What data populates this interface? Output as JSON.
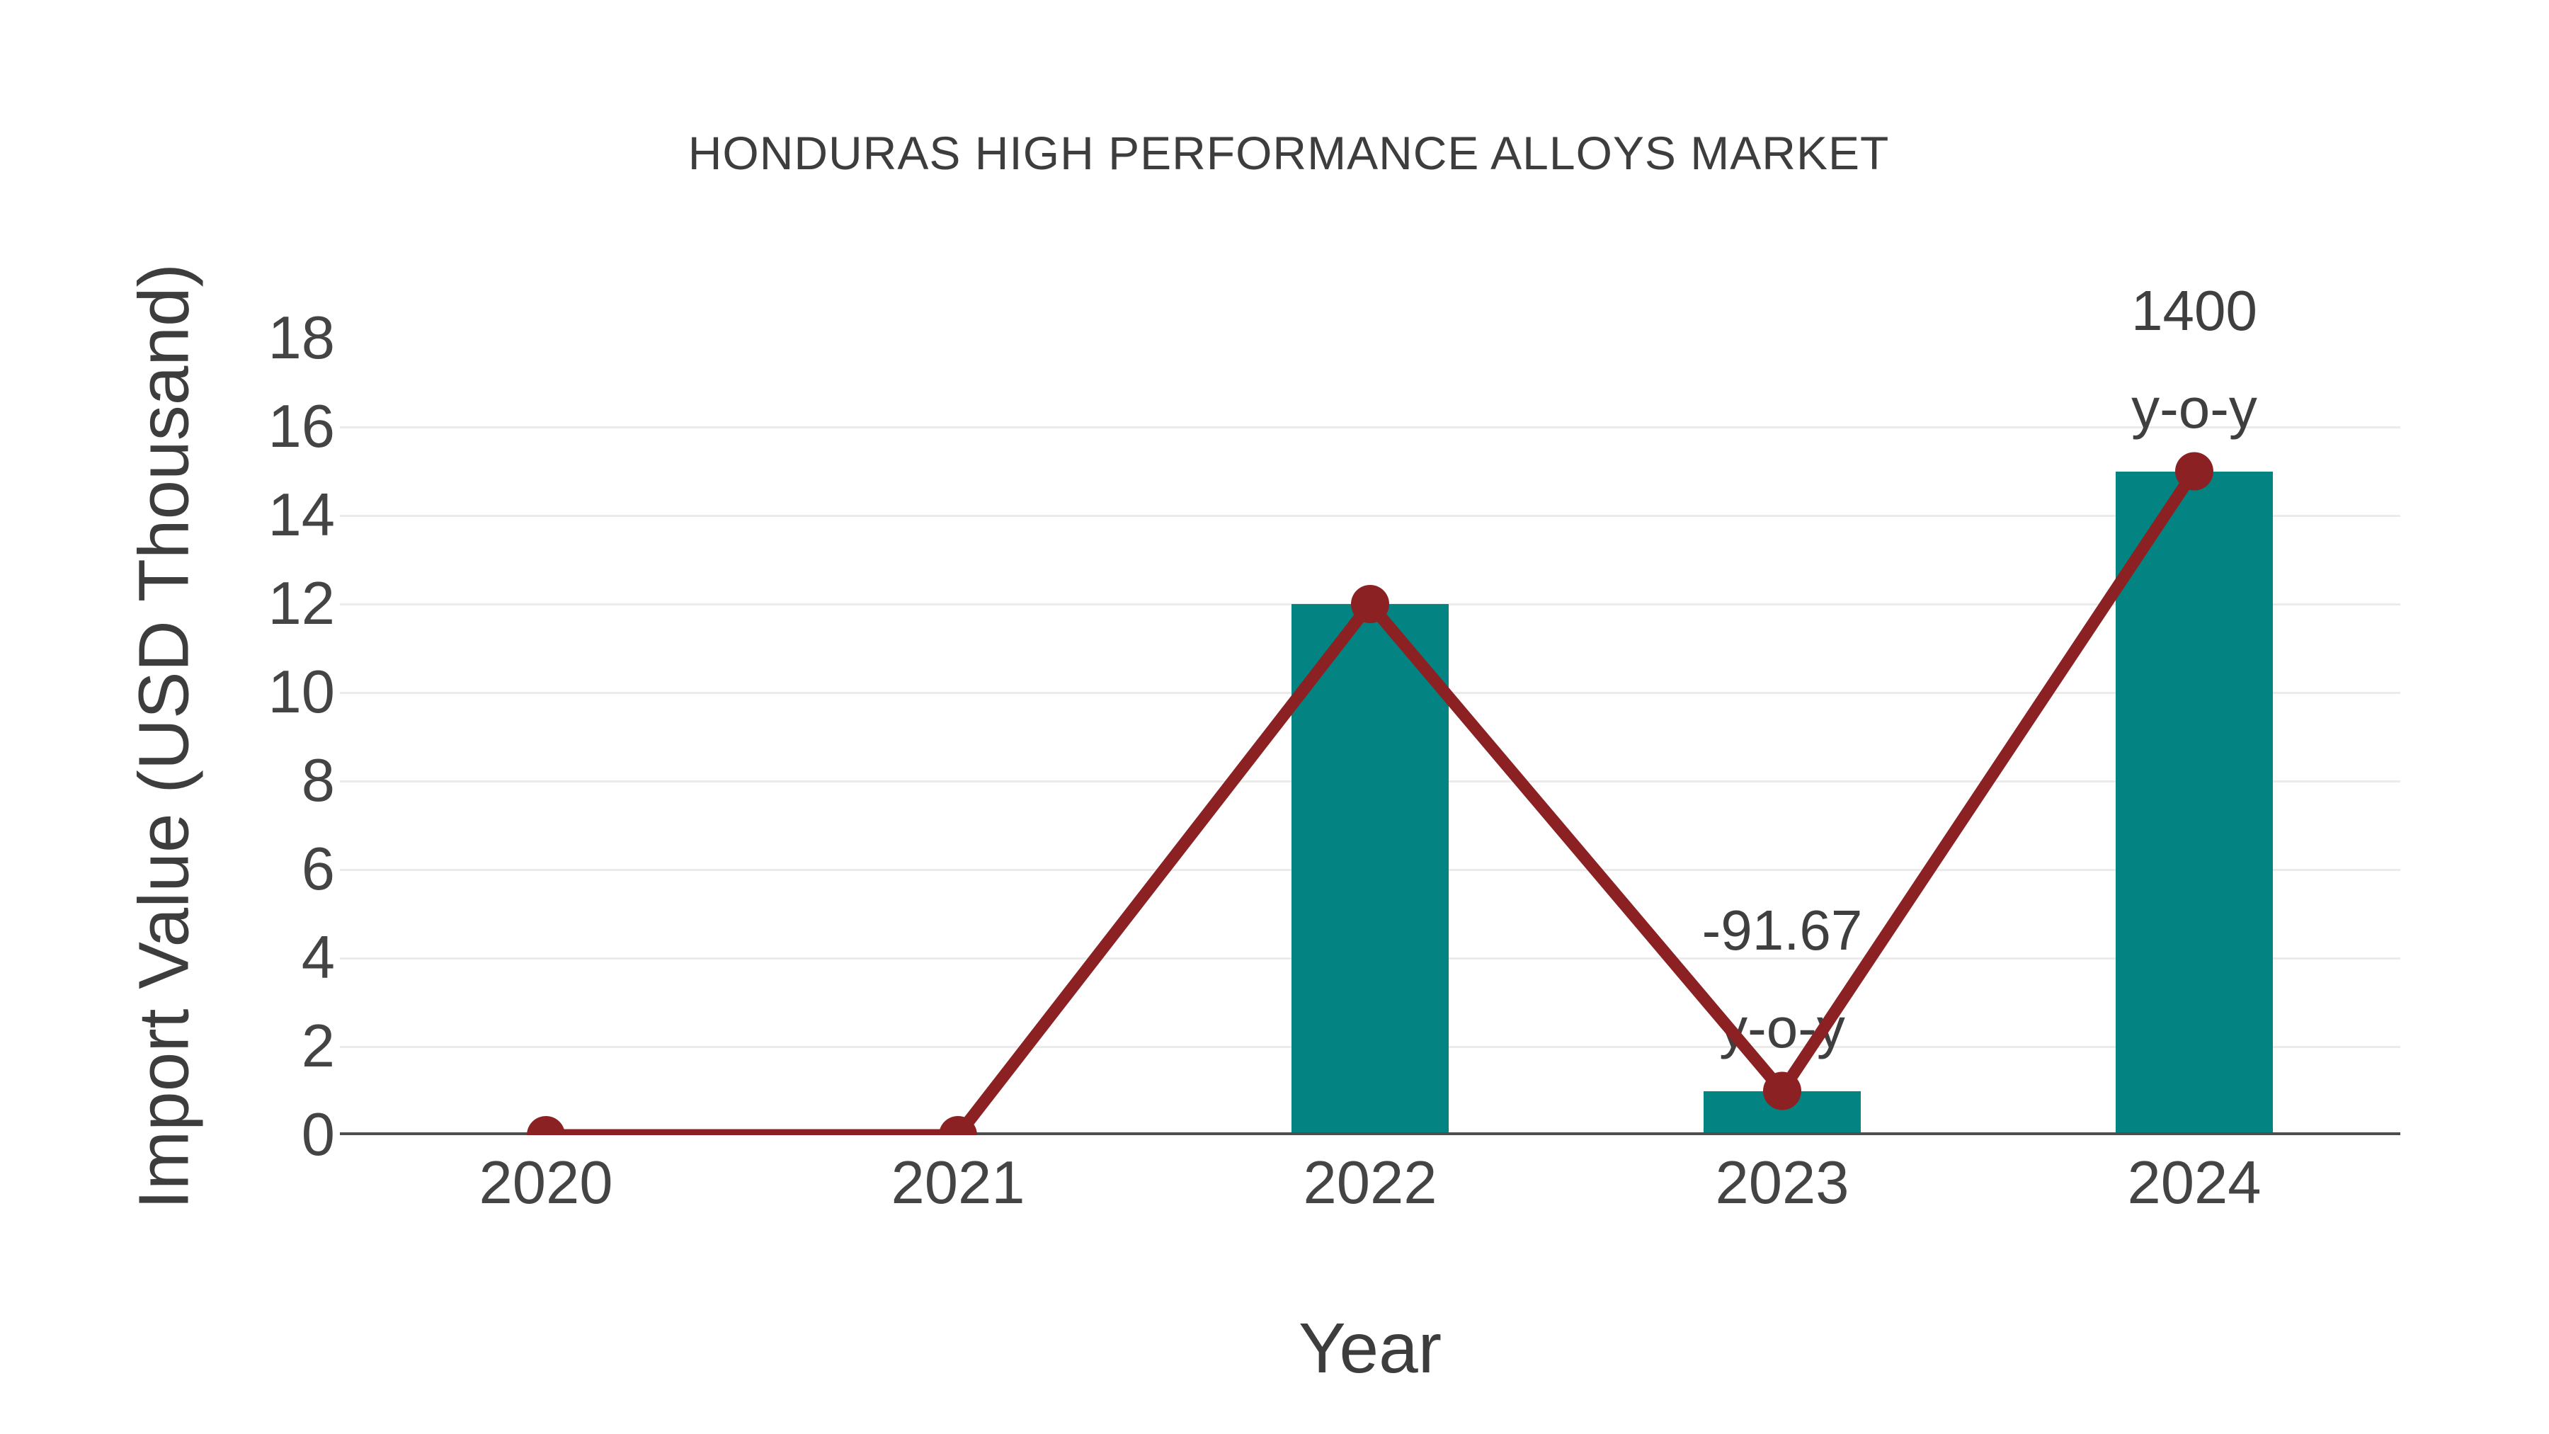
{
  "title": "HONDURAS HIGH PERFORMANCE ALLOYS MARKET",
  "chart_data": {
    "type": "bar",
    "subtype": "bar-with-line-overlay",
    "categories": [
      "2020",
      "2021",
      "2022",
      "2023",
      "2024"
    ],
    "series": [
      {
        "name": "Import Value bars",
        "type": "bar",
        "values": [
          0,
          0,
          12,
          1,
          15
        ]
      },
      {
        "name": "Import Value trend line",
        "type": "line",
        "values": [
          0,
          0,
          12,
          1,
          15
        ]
      }
    ],
    "title": "HONDURAS HIGH PERFORMANCE ALLOYS MARKET",
    "xlabel": "Year",
    "ylabel": "Import Value (USD Thousand)",
    "ylim": [
      0,
      18.2
    ],
    "yticks": [
      0,
      2,
      4,
      6,
      8,
      10,
      12,
      14,
      16,
      18
    ],
    "grid_ticks": [
      2,
      4,
      6,
      8,
      10,
      12,
      14,
      16
    ],
    "legend": "none",
    "annotations": [
      {
        "category": "2023",
        "lines": [
          "-91.67",
          "y-o-y"
        ]
      },
      {
        "category": "2024",
        "lines": [
          "1400",
          "y-o-y"
        ]
      }
    ]
  },
  "colors": {
    "bar": "#038381",
    "line": "#8B2123",
    "marker": "#8B2123",
    "grid": "#EBEBEB",
    "axis_line": "#4D4D4D",
    "title_text": "#3D3D3D",
    "tick_text": "#444444",
    "annotation_text": "#3F3F3F",
    "background": "#FFFFFF"
  }
}
